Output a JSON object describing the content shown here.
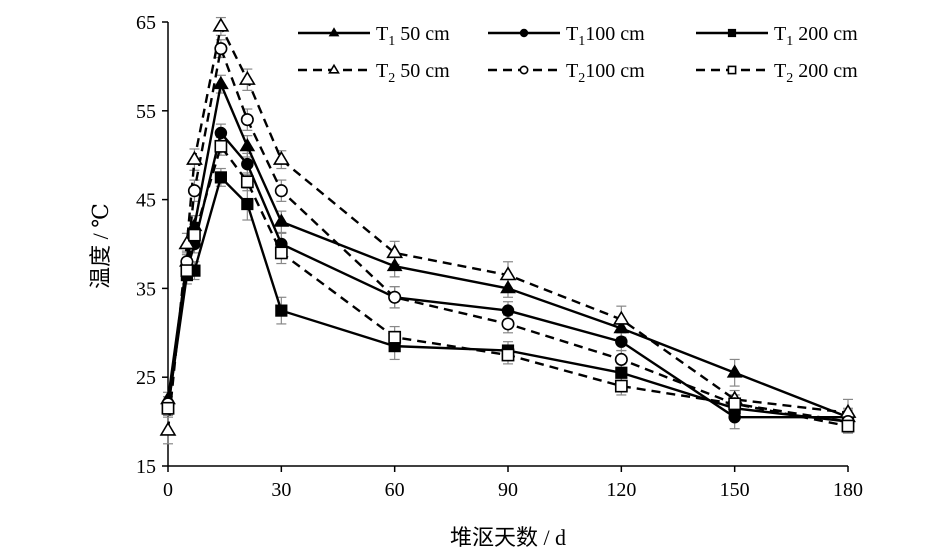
{
  "chart_data": {
    "type": "line",
    "xlabel": "堆沤天数 / d",
    "ylabel": "温度 / ℃",
    "xlim": [
      0,
      180
    ],
    "ylim": [
      15,
      65
    ],
    "xticks": [
      "0",
      "30",
      "60",
      "90",
      "120",
      "150",
      "180"
    ],
    "yticks": [
      "15",
      "25",
      "35",
      "45",
      "55",
      "65"
    ],
    "grid": false,
    "legend_position": "top-right",
    "x": [
      0,
      5,
      7,
      14,
      21,
      30,
      60,
      90,
      120,
      150,
      180
    ],
    "series": [
      {
        "name_main": "T",
        "name_sub": "1",
        "name_rest": " 50 cm",
        "linestyle": "solid",
        "marker": "triangle",
        "filled": true,
        "values": [
          22.5,
          38,
          42,
          58,
          51,
          42.5,
          37.5,
          35,
          30.5,
          25.5,
          20.5
        ],
        "errors": [
          0.8,
          1.2,
          1.2,
          1.0,
          1.2,
          1.2,
          1.2,
          1.0,
          1.0,
          1.5,
          1.0
        ]
      },
      {
        "name_main": "T",
        "name_sub": "1",
        "name_rest": "100 cm",
        "linestyle": "solid",
        "marker": "circle",
        "filled": true,
        "values": [
          22,
          37,
          40,
          52.5,
          49,
          40,
          34,
          32.5,
          29,
          20.5,
          20.5
        ],
        "errors": [
          0.8,
          1.0,
          1.0,
          1.0,
          1.2,
          1.2,
          1.2,
          1.0,
          1.0,
          1.3,
          0.8
        ]
      },
      {
        "name_main": "T",
        "name_sub": "1",
        "name_rest": " 200 cm",
        "linestyle": "solid",
        "marker": "square",
        "filled": true,
        "values": [
          21.5,
          36.5,
          37,
          47.5,
          44.5,
          32.5,
          28.5,
          28,
          25.5,
          21.5,
          20
        ],
        "errors": [
          0.8,
          1.0,
          1.0,
          1.0,
          1.8,
          1.5,
          1.5,
          1.0,
          1.0,
          1.0,
          0.8
        ]
      },
      {
        "name_main": "T",
        "name_sub": "2",
        "name_rest": " 50 cm",
        "linestyle": "dashed",
        "marker": "triangle",
        "filled": false,
        "values": [
          19,
          40,
          49.5,
          64.5,
          58.5,
          49.5,
          39,
          36.5,
          31.5,
          22.5,
          21
        ],
        "errors": [
          1.5,
          1.2,
          1.2,
          1.0,
          1.2,
          1.0,
          1.3,
          1.5,
          1.5,
          1.0,
          1.5
        ]
      },
      {
        "name_main": "T",
        "name_sub": "2",
        "name_rest": "100 cm",
        "linestyle": "dashed",
        "marker": "circle",
        "filled": false,
        "values": [
          22,
          38,
          46,
          62,
          54,
          46,
          34,
          31,
          27,
          22,
          20
        ],
        "errors": [
          0.8,
          1.0,
          1.2,
          1.0,
          1.2,
          1.2,
          1.2,
          1.0,
          1.0,
          1.0,
          0.8
        ]
      },
      {
        "name_main": "T",
        "name_sub": "2",
        "name_rest": " 200 cm",
        "linestyle": "dashed",
        "marker": "square",
        "filled": false,
        "values": [
          21.5,
          37,
          41,
          51,
          47,
          39,
          29.5,
          27.5,
          24,
          22,
          19.5
        ],
        "errors": [
          0.8,
          1.0,
          1.0,
          1.0,
          1.0,
          1.2,
          1.2,
          1.0,
          1.0,
          1.0,
          0.8
        ]
      }
    ]
  }
}
